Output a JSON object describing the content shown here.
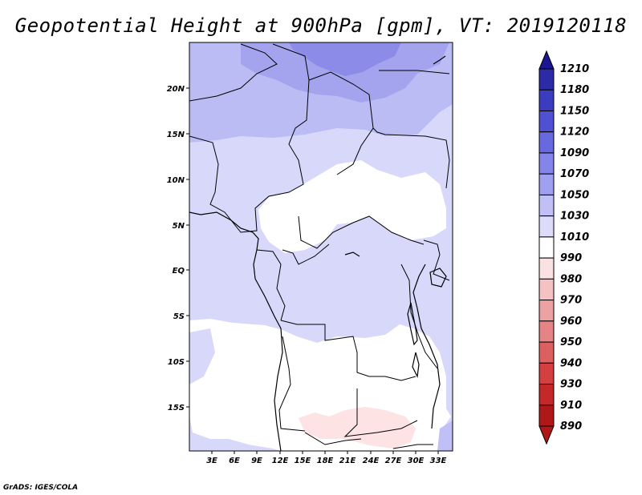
{
  "title": "Geopotential Height at 900hPa [gpm], VT: 2019120118",
  "footer": "GrADS: IGES/COLA",
  "map": {
    "lat_ticks": [
      "20N",
      "15N",
      "10N",
      "5N",
      "EQ",
      "5S",
      "10S",
      "15S"
    ],
    "lon_ticks": [
      "3E",
      "6E",
      "9E",
      "12E",
      "15E",
      "18E",
      "21E",
      "24E",
      "27E",
      "30E",
      "33E"
    ]
  },
  "colorbar": {
    "levels": [
      "1210",
      "1180",
      "1150",
      "1120",
      "1090",
      "1070",
      "1050",
      "1030",
      "1010",
      "990",
      "980",
      "970",
      "960",
      "950",
      "940",
      "930",
      "910",
      "890"
    ],
    "colors": [
      "#1c1690",
      "#2c2aa6",
      "#3c3cc0",
      "#5050d2",
      "#6868e0",
      "#8484ea",
      "#a0a0f0",
      "#c0c0f6",
      "#dcdcfa",
      "#ffffff",
      "#fbe2e2",
      "#f4c2c2",
      "#eca2a2",
      "#e48484",
      "#dc6060",
      "#d44040",
      "#c42828",
      "#b01818"
    ]
  }
}
